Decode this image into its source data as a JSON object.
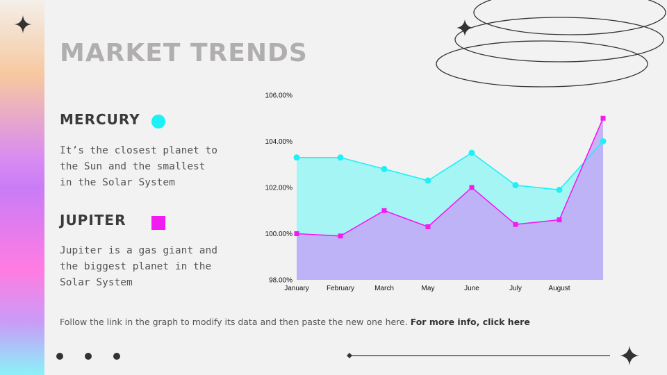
{
  "slide": {
    "title": "MARKET TRENDS",
    "planets": [
      {
        "name": "MERCURY",
        "description": "It’s the closest planet to the Sun and the smallest in the Solar System",
        "color": "#1ef0f6"
      },
      {
        "name": "JUPITER",
        "description": "Jupiter is a gas giant and the biggest planet in the Solar System",
        "color": "#f21bf0"
      }
    ],
    "footer": {
      "note": "Follow the link in the graph to modify its data and then paste the new one here. ",
      "link": "For more info, click here"
    },
    "colors": {
      "mercury_area": "#a6f5f5",
      "jupiter_area": "#c3aaf7",
      "mercury_line": "#1ef0f6",
      "jupiter_line": "#f21bf0"
    }
  },
  "chart_data": {
    "type": "area",
    "categories": [
      "January",
      "February",
      "March",
      "May",
      "June",
      "July",
      "August",
      ""
    ],
    "series": [
      {
        "name": "MERCURY",
        "values": [
          103.3,
          103.3,
          102.8,
          102.3,
          103.5,
          102.1,
          101.9,
          104.0
        ],
        "marker": "circle"
      },
      {
        "name": "JUPITER",
        "values": [
          100.0,
          99.9,
          101.0,
          100.3,
          102.0,
          100.4,
          100.6,
          105.0
        ],
        "marker": "square"
      }
    ],
    "y_ticks": [
      "98.00%",
      "100.00%",
      "102.00%",
      "104.00%",
      "106.00%"
    ],
    "ylim": [
      98,
      106
    ],
    "grid": false,
    "legend": "none"
  }
}
